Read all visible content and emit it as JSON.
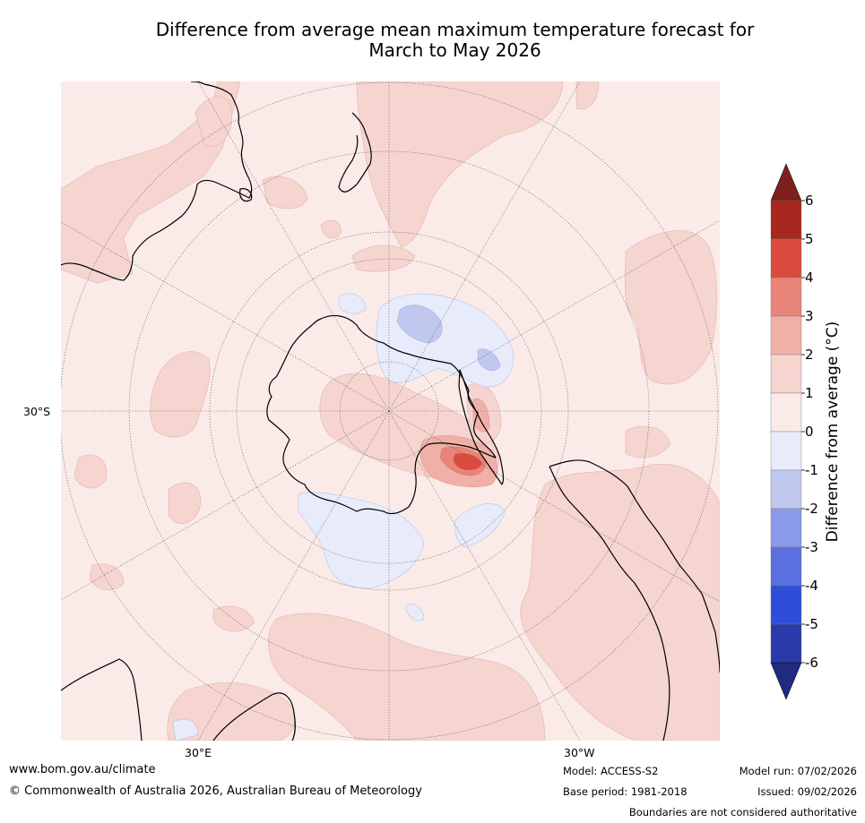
{
  "title_line1": "Difference from average mean maximum temperature forecast for",
  "title_line2": "March to May 2026",
  "map": {
    "lat_label": "30°S",
    "lon_label_east": "30°E",
    "lon_label_west": "30°W"
  },
  "colorbar": {
    "title": "Difference from average (°C)",
    "ticks": [
      "6",
      "5",
      "4",
      "3",
      "2",
      "1",
      "0",
      "-1",
      "-2",
      "-3",
      "-4",
      "-5",
      "-6"
    ],
    "colors": {
      "above_6": "#7d1f1c",
      "5_to_6": "#a8271f",
      "4_to_5": "#db4c3e",
      "3_to_4": "#e88578",
      "2_to_3": "#f0b0a8",
      "1_to_2": "#f6d4d0",
      "0_to_1": "#fbebe8",
      "m1_to_0": "#e8ecfa",
      "m2_to_m1": "#c0c8f0",
      "m3_to_m2": "#8a9ae8",
      "m4_to_m3": "#5a6fe0",
      "m5_to_m4": "#2e4ed8",
      "m6_to_m5": "#2a3aa8",
      "below_m6": "#1f2a80"
    }
  },
  "footer": {
    "url": "www.bom.gov.au/climate",
    "copyright": "© Commonwealth of Australia 2026, Australian Bureau of Meteorology",
    "model": "Model: ACCESS-S2",
    "base_period": "Base period: 1981-2018",
    "model_run": "Model run: 07/02/2026",
    "issued": "Issued: 09/02/2026",
    "boundaries": "Boundaries are not considered authoritative"
  }
}
